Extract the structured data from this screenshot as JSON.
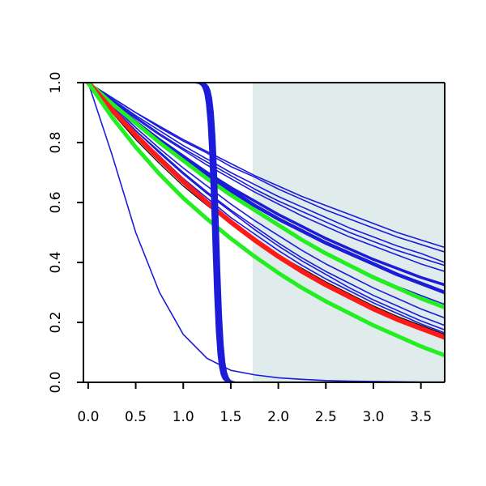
{
  "chart_data": {
    "type": "line",
    "title": "",
    "xlabel": "",
    "ylabel": "",
    "xlim": [
      -0.05,
      3.75
    ],
    "ylim": [
      0.0,
      1.0
    ],
    "grid": false,
    "legend": "none",
    "x_ticks": [
      "0.0",
      "0.5",
      "1.0",
      "1.5",
      "2.0",
      "2.5",
      "3.0",
      "3.5"
    ],
    "y_ticks": [
      "0.0",
      "0.2",
      "0.4",
      "0.6",
      "0.8",
      "1.0"
    ],
    "shaded_region": {
      "x_start": 1.73,
      "x_end": 3.75,
      "color": "#e0ecec"
    },
    "colors": {
      "blue": "#1c1cd8",
      "red": "#ff1a1a",
      "green": "#22ee22",
      "black": "#000000"
    },
    "x_values": [
      0.0,
      0.25,
      0.5,
      0.75,
      1.0,
      1.25,
      1.5,
      1.75,
      2.0,
      2.25,
      2.5,
      2.75,
      3.0,
      3.25,
      3.5,
      3.75
    ],
    "series": [
      {
        "color": "blue",
        "width": 1.6,
        "values": [
          1.0,
          0.76,
          0.5,
          0.3,
          0.16,
          0.08,
          0.04,
          0.025,
          0.015,
          0.01,
          0.006,
          0.004,
          0.003,
          0.002,
          0.001,
          0.001
        ]
      },
      {
        "color": "blue",
        "width": 1.6,
        "values": [
          1.0,
          0.95,
          0.9,
          0.855,
          0.81,
          0.77,
          0.73,
          0.69,
          0.655,
          0.62,
          0.59,
          0.56,
          0.53,
          0.5,
          0.475,
          0.45
        ]
      },
      {
        "color": "blue",
        "width": 1.6,
        "values": [
          1.0,
          0.95,
          0.9,
          0.85,
          0.805,
          0.765,
          0.72,
          0.685,
          0.645,
          0.61,
          0.575,
          0.545,
          0.515,
          0.485,
          0.46,
          0.435
        ]
      },
      {
        "color": "blue",
        "width": 1.6,
        "values": [
          1.0,
          0.945,
          0.89,
          0.84,
          0.79,
          0.745,
          0.7,
          0.66,
          0.62,
          0.585,
          0.55,
          0.515,
          0.485,
          0.455,
          0.43,
          0.4
        ]
      },
      {
        "color": "blue",
        "width": 1.6,
        "values": [
          1.0,
          0.94,
          0.885,
          0.83,
          0.78,
          0.735,
          0.69,
          0.645,
          0.605,
          0.57,
          0.535,
          0.5,
          0.47,
          0.44,
          0.415,
          0.39
        ]
      },
      {
        "color": "blue",
        "width": 1.6,
        "values": [
          1.0,
          0.94,
          0.88,
          0.825,
          0.775,
          0.725,
          0.68,
          0.635,
          0.595,
          0.555,
          0.52,
          0.485,
          0.455,
          0.425,
          0.395,
          0.37
        ]
      },
      {
        "color": "blue",
        "width": 3.5,
        "values": [
          1.0,
          0.935,
          0.87,
          0.81,
          0.755,
          0.7,
          0.65,
          0.605,
          0.56,
          0.52,
          0.48,
          0.445,
          0.41,
          0.38,
          0.35,
          0.325
        ]
      },
      {
        "color": "blue",
        "width": 4.5,
        "values": [
          1.0,
          0.93,
          0.865,
          0.805,
          0.745,
          0.69,
          0.64,
          0.59,
          0.545,
          0.505,
          0.465,
          0.43,
          0.395,
          0.36,
          0.33,
          0.3
        ]
      },
      {
        "color": "blue",
        "width": 1.6,
        "values": [
          1.0,
          0.93,
          0.86,
          0.795,
          0.735,
          0.675,
          0.62,
          0.57,
          0.52,
          0.475,
          0.43,
          0.39,
          0.355,
          0.32,
          0.29,
          0.26
        ]
      },
      {
        "color": "blue",
        "width": 1.6,
        "values": [
          1.0,
          0.925,
          0.85,
          0.78,
          0.715,
          0.655,
          0.595,
          0.54,
          0.49,
          0.44,
          0.395,
          0.355,
          0.315,
          0.28,
          0.245,
          0.215
        ]
      },
      {
        "color": "blue",
        "width": 1.6,
        "values": [
          1.0,
          0.92,
          0.84,
          0.77,
          0.7,
          0.635,
          0.575,
          0.52,
          0.465,
          0.415,
          0.37,
          0.33,
          0.29,
          0.255,
          0.22,
          0.19
        ]
      },
      {
        "color": "blue",
        "width": 1.6,
        "values": [
          1.0,
          0.92,
          0.84,
          0.765,
          0.695,
          0.63,
          0.57,
          0.51,
          0.455,
          0.405,
          0.36,
          0.315,
          0.275,
          0.24,
          0.205,
          0.175
        ]
      },
      {
        "color": "blue",
        "width": 1.6,
        "values": [
          1.0,
          0.915,
          0.83,
          0.755,
          0.68,
          0.615,
          0.55,
          0.495,
          0.44,
          0.39,
          0.345,
          0.305,
          0.265,
          0.23,
          0.195,
          0.165
        ]
      },
      {
        "color": "black",
        "width": 1.2,
        "values": [
          1.0,
          0.9,
          0.81,
          0.73,
          0.655,
          0.59,
          0.53,
          0.475,
          0.425,
          0.38,
          0.335,
          0.295,
          0.255,
          0.22,
          0.19,
          0.16
        ]
      },
      {
        "color": "green",
        "width": 5,
        "values": [
          1.0,
          0.93,
          0.865,
          0.8,
          0.74,
          0.68,
          0.625,
          0.575,
          0.525,
          0.475,
          0.43,
          0.39,
          0.35,
          0.315,
          0.28,
          0.25
        ]
      },
      {
        "color": "red",
        "width": 6,
        "values": [
          1.0,
          0.91,
          0.825,
          0.745,
          0.67,
          0.6,
          0.535,
          0.475,
          0.42,
          0.37,
          0.325,
          0.285,
          0.245,
          0.21,
          0.18,
          0.15
        ]
      },
      {
        "color": "green",
        "width": 5,
        "values": [
          1.0,
          0.885,
          0.785,
          0.695,
          0.615,
          0.545,
          0.48,
          0.42,
          0.365,
          0.315,
          0.27,
          0.23,
          0.19,
          0.155,
          0.12,
          0.09
        ]
      }
    ],
    "step_curves": {
      "color": "blue",
      "width": 1.6,
      "centers": [
        1.31,
        1.32,
        1.33,
        1.34,
        1.35,
        1.36,
        1.37
      ],
      "steepness": 40
    }
  }
}
